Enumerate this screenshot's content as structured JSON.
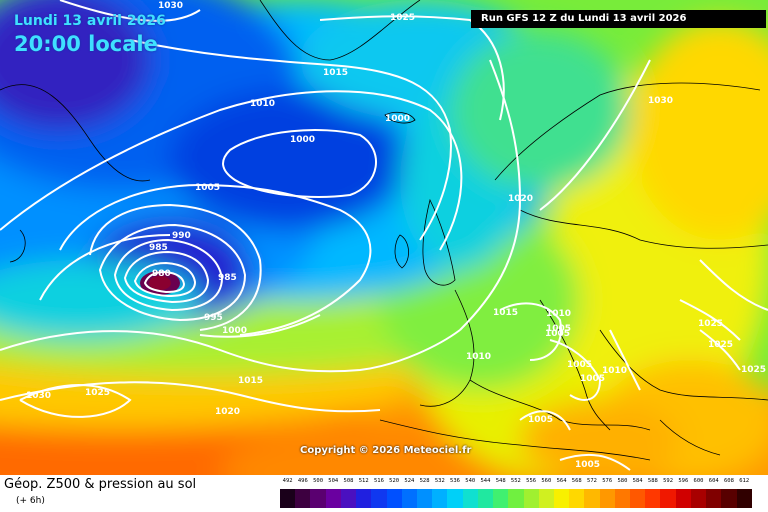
{
  "header": {
    "date": "Lundi 13 avril 2026",
    "time": "20:00 locale",
    "run": "Run GFS 12 Z du Lundi 13 avril 2026"
  },
  "copyright": "Copyright © 2026 Meteociel.fr",
  "footer": {
    "title": "Géop. Z500 & pression au sol",
    "subtitle": "(+ 6h)"
  },
  "legend": {
    "values": [
      "492",
      "496",
      "500",
      "504",
      "508",
      "512",
      "516",
      "520",
      "524",
      "528",
      "532",
      "536",
      "540",
      "544",
      "548",
      "552",
      "556",
      "560",
      "564",
      "568",
      "572",
      "576",
      "580",
      "584",
      "588",
      "592",
      "596",
      "600",
      "604",
      "608",
      "612"
    ],
    "colors": [
      "#1a001a",
      "#3d0040",
      "#5a0070",
      "#6a00a0",
      "#4a10c0",
      "#2020e0",
      "#1038f0",
      "#0050ff",
      "#0070ff",
      "#0090ff",
      "#00b0ff",
      "#00d0f8",
      "#10e0d0",
      "#20e8a0",
      "#40f070",
      "#70f040",
      "#a0f030",
      "#d0f020",
      "#f8f000",
      "#ffd800",
      "#ffb800",
      "#ff9800",
      "#ff7800",
      "#ff5800",
      "#ff3800",
      "#f01800",
      "#d00000",
      "#a80000",
      "#800000",
      "#580000",
      "#300000"
    ]
  },
  "isobars": [
    {
      "label": "1030"
    },
    {
      "label": "1025"
    },
    {
      "label": "1015"
    },
    {
      "label": "1010"
    },
    {
      "label": "1000"
    },
    {
      "label": "1000"
    },
    {
      "label": "1005"
    },
    {
      "label": "990"
    },
    {
      "label": "985"
    },
    {
      "label": "980"
    },
    {
      "label": "985"
    },
    {
      "label": "995"
    },
    {
      "label": "1000"
    },
    {
      "label": "1015"
    },
    {
      "label": "1020"
    },
    {
      "label": "1030"
    },
    {
      "label": "1025"
    },
    {
      "label": "1030"
    },
    {
      "label": "1020"
    },
    {
      "label": "1015"
    },
    {
      "label": "1010"
    },
    {
      "label": "1005"
    },
    {
      "label": "1005"
    },
    {
      "label": "1005"
    },
    {
      "label": "1010"
    },
    {
      "label": "1005"
    },
    {
      "label": "1005"
    },
    {
      "label": "1025"
    },
    {
      "label": "1025"
    },
    {
      "label": "1025"
    },
    {
      "label": "1010"
    },
    {
      "label": "1005"
    }
  ]
}
